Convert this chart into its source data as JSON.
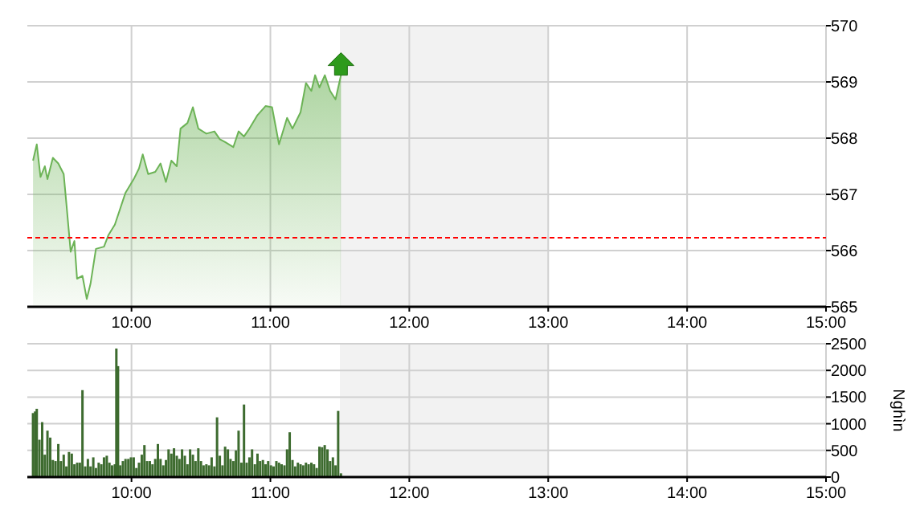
{
  "chart_data": [
    {
      "type": "area",
      "xlim": [
        9.25,
        15
      ],
      "ylim": [
        565,
        570
      ],
      "yticks": [
        565,
        566,
        567,
        568,
        569,
        570
      ],
      "xticks": [
        {
          "value": 10,
          "label": "10:00"
        },
        {
          "value": 11,
          "label": "11:00"
        },
        {
          "value": 12,
          "label": "12:00"
        },
        {
          "value": 13,
          "label": "13:00"
        },
        {
          "value": 14,
          "label": "14:00"
        },
        {
          "value": 15,
          "label": "15:00"
        }
      ],
      "grid": true,
      "ref_lines": [
        {
          "axis": "y",
          "value": 566.23,
          "color": "#ff0000",
          "line_style": "dashed"
        }
      ],
      "bands": [
        {
          "axis": "x",
          "from": 11.5,
          "to": 13,
          "color": "#f2f2f2"
        }
      ],
      "series": [
        {
          "color": "#6cb356",
          "x": [
            9.291,
            9.318,
            9.345,
            9.376,
            9.395,
            9.434,
            9.473,
            9.512,
            9.531,
            9.562,
            9.589,
            9.608,
            9.647,
            9.678,
            9.705,
            9.744,
            9.802,
            9.833,
            9.88,
            9.911,
            9.957,
            10.016,
            10.054,
            10.081,
            10.12,
            10.171,
            10.209,
            10.248,
            10.287,
            10.326,
            10.353,
            10.403,
            10.442,
            10.481,
            10.539,
            10.597,
            10.636,
            10.674,
            10.733,
            10.771,
            10.81,
            10.849,
            10.907,
            10.965,
            11.012,
            11.062,
            11.12,
            11.159,
            11.217,
            11.256,
            11.295,
            11.322,
            11.353,
            11.392,
            11.43,
            11.469,
            11.508
          ],
          "values": [
            567.6,
            567.89,
            567.31,
            567.5,
            567.27,
            567.65,
            567.55,
            567.36,
            566.84,
            565.98,
            566.17,
            565.5,
            565.55,
            565.14,
            565.41,
            566.03,
            566.07,
            566.27,
            566.46,
            566.69,
            567.03,
            567.27,
            567.46,
            567.71,
            567.36,
            567.4,
            567.55,
            567.22,
            567.6,
            567.5,
            568.17,
            568.27,
            568.55,
            568.17,
            568.08,
            568.12,
            567.98,
            567.93,
            567.84,
            568.12,
            568.03,
            568.17,
            568.41,
            568.57,
            568.55,
            567.89,
            568.36,
            568.17,
            568.46,
            568.98,
            568.84,
            569.12,
            568.9,
            569.12,
            568.84,
            568.69,
            569.12
          ]
        }
      ]
    },
    {
      "type": "bar",
      "ylabel": "Nghìn",
      "xlim": [
        9.25,
        15
      ],
      "ylim": [
        0,
        2500
      ],
      "yticks": [
        0,
        500,
        1000,
        1500,
        2000,
        2500
      ],
      "xticks": [
        {
          "value": 10,
          "label": "10:00"
        },
        {
          "value": 11,
          "label": "11:00"
        },
        {
          "value": 12,
          "label": "12:00"
        },
        {
          "value": 13,
          "label": "13:00"
        },
        {
          "value": 14,
          "label": "14:00"
        },
        {
          "value": 15,
          "label": "15:00"
        }
      ],
      "grid": true,
      "bands": [
        {
          "axis": "x",
          "from": 11.5,
          "to": 13,
          "color": "#f2f2f2"
        }
      ],
      "series": [
        {
          "color": "#3d6b2f",
          "x": [
            9.291,
            9.306,
            9.318,
            9.337,
            9.357,
            9.376,
            9.395,
            9.415,
            9.434,
            9.453,
            9.473,
            9.492,
            9.512,
            9.531,
            9.55,
            9.57,
            9.589,
            9.609,
            9.628,
            9.647,
            9.667,
            9.686,
            9.705,
            9.725,
            9.744,
            9.764,
            9.783,
            9.802,
            9.822,
            9.841,
            9.86,
            9.88,
            9.891,
            9.903,
            9.919,
            9.938,
            9.957,
            9.977,
            9.996,
            10.016,
            10.035,
            10.054,
            10.074,
            10.093,
            10.112,
            10.132,
            10.151,
            10.171,
            10.19,
            10.209,
            10.229,
            10.248,
            10.267,
            10.287,
            10.306,
            10.326,
            10.345,
            10.364,
            10.384,
            10.403,
            10.422,
            10.442,
            10.461,
            10.481,
            10.5,
            10.519,
            10.539,
            10.558,
            10.577,
            10.597,
            10.616,
            10.636,
            10.655,
            10.674,
            10.694,
            10.713,
            10.733,
            10.752,
            10.771,
            10.791,
            10.81,
            10.829,
            10.849,
            10.868,
            10.888,
            10.907,
            10.926,
            10.946,
            10.965,
            10.984,
            11.004,
            11.023,
            11.043,
            11.062,
            11.081,
            11.101,
            11.12,
            11.139,
            11.159,
            11.178,
            11.198,
            11.217,
            11.236,
            11.256,
            11.275,
            11.295,
            11.314,
            11.333,
            11.353,
            11.372,
            11.391,
            11.411,
            11.43,
            11.45,
            11.469,
            11.488,
            11.508
          ],
          "values": [
            1200,
            1230,
            1280,
            700,
            1030,
            420,
            870,
            740,
            320,
            300,
            620,
            300,
            420,
            200,
            470,
            440,
            240,
            270,
            270,
            1630,
            200,
            340,
            200,
            370,
            170,
            270,
            240,
            370,
            400,
            270,
            220,
            240,
            2410,
            2080,
            220,
            300,
            340,
            340,
            370,
            370,
            170,
            270,
            420,
            600,
            300,
            300,
            240,
            340,
            620,
            340,
            220,
            320,
            520,
            440,
            540,
            400,
            340,
            520,
            400,
            240,
            520,
            420,
            300,
            540,
            300,
            220,
            240,
            220,
            370,
            200,
            1120,
            400,
            220,
            570,
            520,
            340,
            300,
            500,
            870,
            270,
            1360,
            270,
            370,
            520,
            240,
            440,
            300,
            320,
            240,
            300,
            220,
            200,
            300,
            270,
            240,
            220,
            520,
            840,
            320,
            200,
            270,
            240,
            220,
            270,
            240,
            270,
            240,
            170,
            570,
            560,
            600,
            520,
            300,
            370,
            220,
            1240,
            70
          ]
        }
      ]
    }
  ]
}
